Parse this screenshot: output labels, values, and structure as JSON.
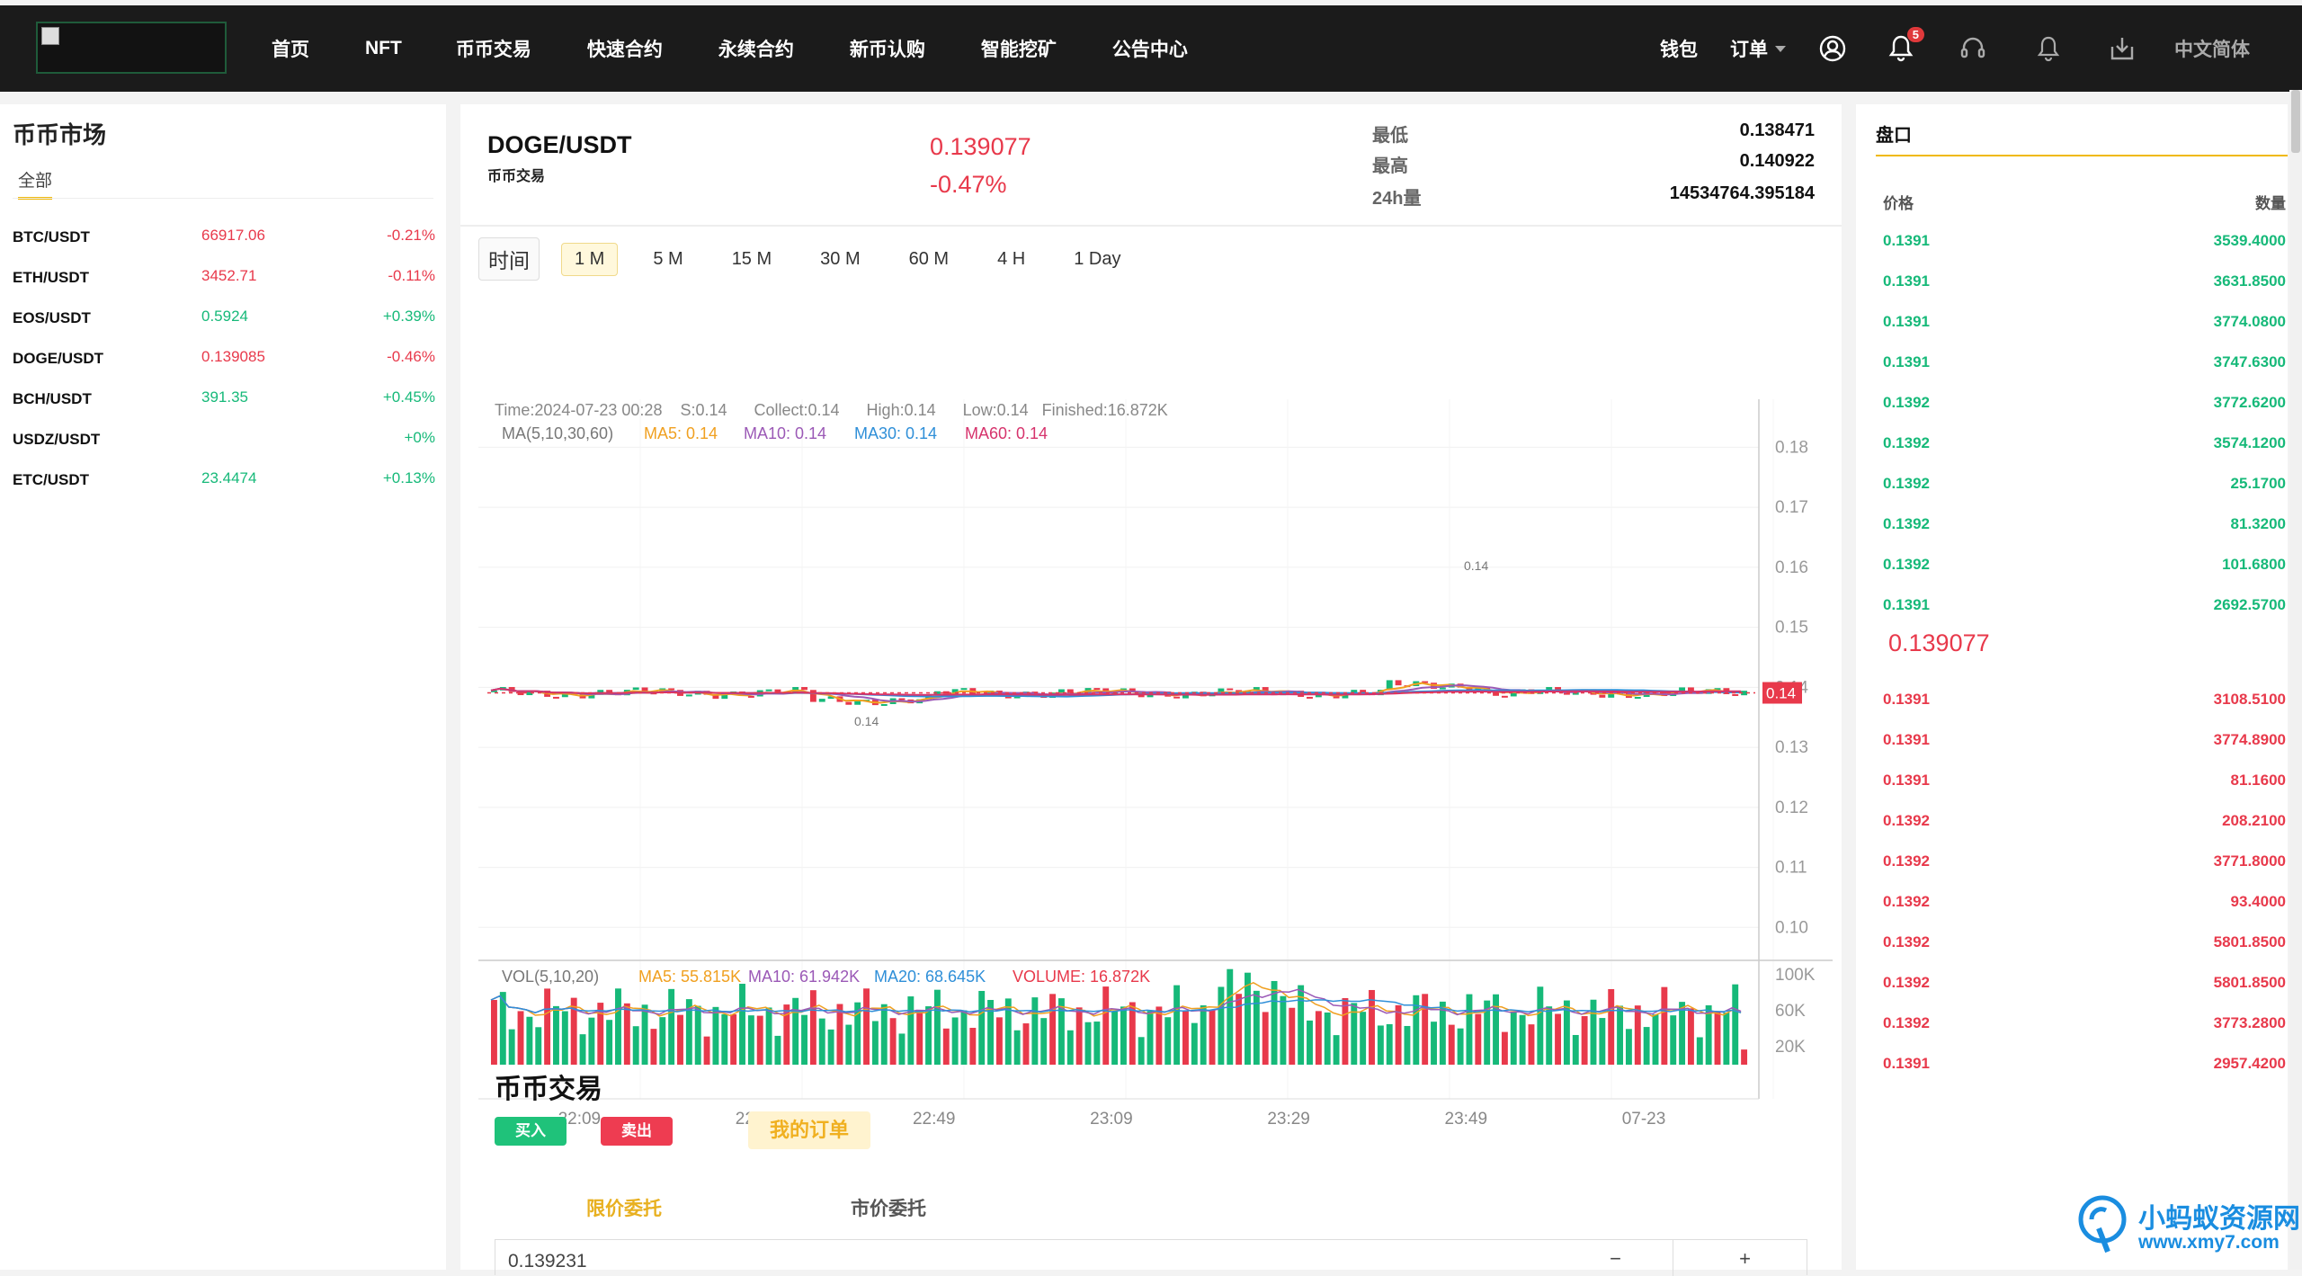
{
  "nav": {
    "items": [
      "首页",
      "NFT",
      "币币交易",
      "快速合约",
      "永续合约",
      "新币认购",
      "智能挖矿",
      "公告中心"
    ],
    "wallet": "钱包",
    "orders": "订单",
    "notification_count": "5",
    "language": "中文简体"
  },
  "market": {
    "title": "币币市场",
    "tab": "全部",
    "rows": [
      {
        "symbol": "BTC/USDT",
        "price": "66917.06",
        "change": "-0.21%",
        "dir": "dn"
      },
      {
        "symbol": "ETH/USDT",
        "price": "3452.71",
        "change": "-0.11%",
        "dir": "dn"
      },
      {
        "symbol": "EOS/USDT",
        "price": "0.5924",
        "change": "+0.39%",
        "dir": "up"
      },
      {
        "symbol": "DOGE/USDT",
        "price": "0.139085",
        "change": "-0.46%",
        "dir": "dn"
      },
      {
        "symbol": "BCH/USDT",
        "price": "391.35",
        "change": "+0.45%",
        "dir": "up"
      },
      {
        "symbol": "USDZ/USDT",
        "price": "",
        "change": "+0%",
        "dir": "up"
      },
      {
        "symbol": "ETC/USDT",
        "price": "23.4474",
        "change": "+0.13%",
        "dir": "up"
      }
    ]
  },
  "ticker": {
    "pair": "DOGE/USDT",
    "sub": "币币交易",
    "last": "0.139077",
    "change": "-0.47%",
    "low_label": "最低",
    "low": "0.138471",
    "high_label": "最高",
    "high": "0.140922",
    "vol_label": "24h量",
    "vol": "14534764.395184"
  },
  "timeframes": {
    "label": "时间",
    "items": [
      "1 M",
      "5 M",
      "15 M",
      "30 M",
      "60 M",
      "4 H",
      "1 Day"
    ],
    "active": "1 M"
  },
  "chart_info": {
    "line1": "Time:2024-07-23 00:28    S:0.14      Collect:0.14      High:0.14      Low:0.14   Finished:16.872K",
    "ma_label": "MA(5,10,30,60)",
    "ma5": "MA5: 0.14",
    "ma10": "MA10: 0.14",
    "ma30": "MA30: 0.14",
    "ma60": "MA60: 0.14",
    "vol_label": "VOL(5,10,20)",
    "vma5": "MA5: 55.815K",
    "vma10": "MA10: 61.942K",
    "vma20": "MA20: 68.645K",
    "volume": "VOLUME: 16.872K",
    "last_price_tag": "0.14",
    "max_marker": "0.14",
    "min_marker": "0.14"
  },
  "chart_data": {
    "type": "line",
    "price_axis": [
      "0.18",
      "0.17",
      "0.16",
      "0.15",
      "0.14",
      "0.13",
      "0.12",
      "0.11",
      "0.10"
    ],
    "price_ticks": [
      0.18,
      0.17,
      0.16,
      0.15,
      0.14,
      0.13,
      0.12,
      0.11,
      0.1
    ],
    "ylim": [
      0.096,
      0.188
    ],
    "vol_axis": [
      "100K",
      "60K",
      "20K"
    ],
    "vol_ticks": [
      100000,
      60000,
      20000
    ],
    "vol_ylim": [
      0,
      120000
    ],
    "x_labels": [
      "22:09",
      "22:29",
      "22:49",
      "23:09",
      "23:29",
      "23:49",
      "07-23"
    ],
    "x_label_index": [
      10,
      30,
      50,
      70,
      90,
      110,
      130
    ],
    "last_price": 0.139077,
    "series": [
      {
        "name": "MA5",
        "color": "#f0a020"
      },
      {
        "name": "MA10",
        "color": "#9b59b6"
      },
      {
        "name": "MA30",
        "color": "#2f8fd8"
      },
      {
        "name": "MA60",
        "color": "#d6336c"
      }
    ]
  },
  "trade": {
    "title": "币币交易",
    "buy": "买入",
    "sell": "卖出",
    "my_orders": "我的订单",
    "tab_limit": "限价委托",
    "tab_market": "市价委托",
    "price_value": "0.139231",
    "minus": "−",
    "plus": "+"
  },
  "orderbook": {
    "title": "盘口",
    "col_price": "价格",
    "col_qty": "数量",
    "asks": [
      {
        "p": "0.1391",
        "q": "3539.4000"
      },
      {
        "p": "0.1391",
        "q": "3631.8500"
      },
      {
        "p": "0.1391",
        "q": "3774.0800"
      },
      {
        "p": "0.1391",
        "q": "3747.6300"
      },
      {
        "p": "0.1392",
        "q": "3772.6200"
      },
      {
        "p": "0.1392",
        "q": "3574.1200"
      },
      {
        "p": "0.1392",
        "q": "25.1700"
      },
      {
        "p": "0.1392",
        "q": "81.3200"
      },
      {
        "p": "0.1392",
        "q": "101.6800"
      },
      {
        "p": "0.1391",
        "q": "2692.5700"
      }
    ],
    "mid": "0.139077",
    "bids": [
      {
        "p": "0.1391",
        "q": "3108.5100"
      },
      {
        "p": "0.1391",
        "q": "3774.8900"
      },
      {
        "p": "0.1391",
        "q": "81.1600"
      },
      {
        "p": "0.1392",
        "q": "208.2100"
      },
      {
        "p": "0.1392",
        "q": "3771.8000"
      },
      {
        "p": "0.1392",
        "q": "93.4000"
      },
      {
        "p": "0.1392",
        "q": "5801.8500"
      },
      {
        "p": "0.1392",
        "q": "5801.8500"
      },
      {
        "p": "0.1392",
        "q": "3773.2800"
      },
      {
        "p": "0.1391",
        "q": "2957.4200"
      }
    ]
  },
  "watermark": {
    "line1": "小蚂蚁资源网",
    "line2": "www.xmy7.com"
  }
}
